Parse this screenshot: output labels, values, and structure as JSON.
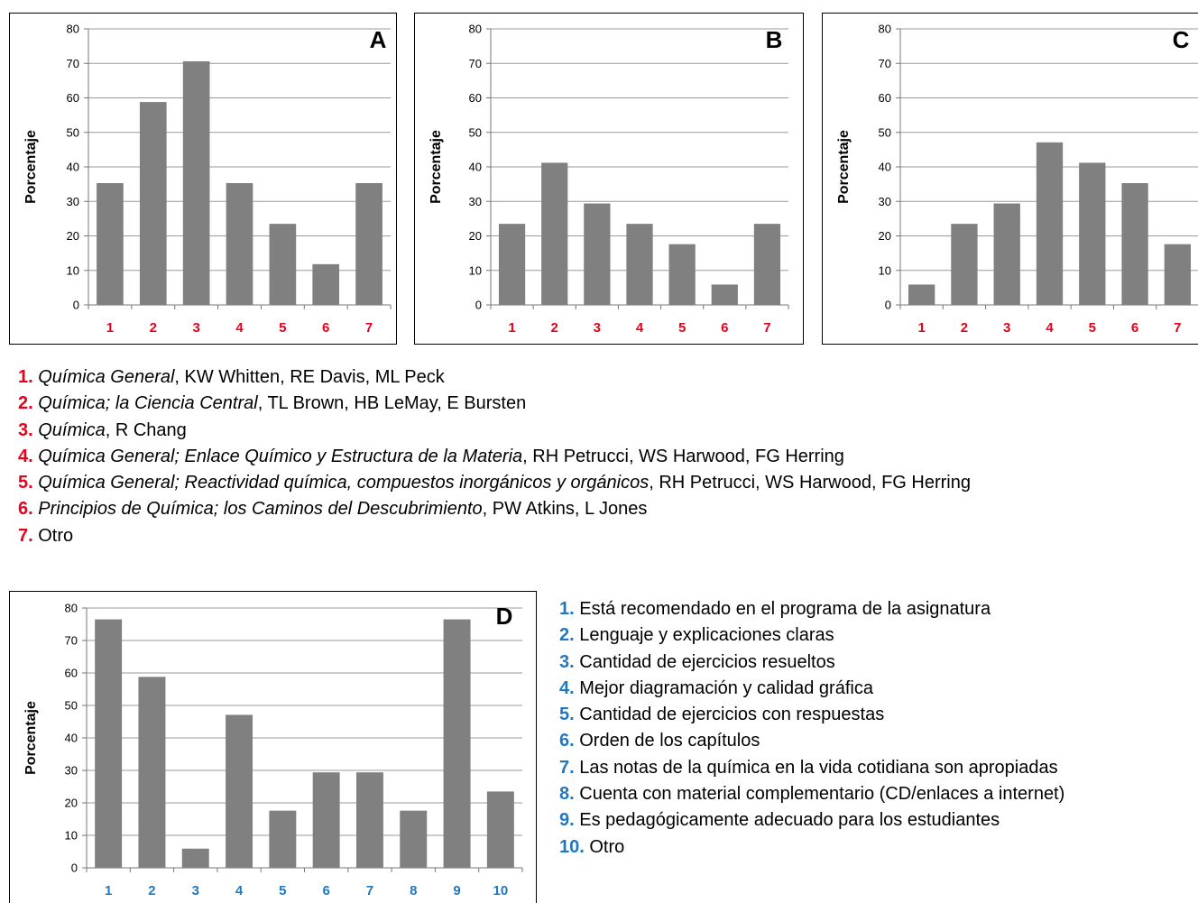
{
  "colors": {
    "bar": "#808080",
    "book_number": "#e8001c",
    "reason_number": "#1f78c2",
    "grid": "#9a9a9a"
  },
  "y_axis_label": "Porcentaje",
  "chart_data": [
    {
      "type": "bar",
      "panel": "A",
      "ylabel": "Porcentaje",
      "ylim": [
        0,
        80
      ],
      "yticks": [
        0,
        10,
        20,
        30,
        40,
        50,
        60,
        70,
        80
      ],
      "categories": [
        "1",
        "2",
        "3",
        "4",
        "5",
        "6",
        "7"
      ],
      "values": [
        35.3,
        58.8,
        70.6,
        35.3,
        23.5,
        11.8,
        35.3
      ],
      "grid": true
    },
    {
      "type": "bar",
      "panel": "B",
      "ylabel": "Porcentaje",
      "ylim": [
        0,
        80
      ],
      "yticks": [
        0,
        10,
        20,
        30,
        40,
        50,
        60,
        70,
        80
      ],
      "categories": [
        "1",
        "2",
        "3",
        "4",
        "5",
        "6",
        "7"
      ],
      "values": [
        23.5,
        41.2,
        29.4,
        23.5,
        17.6,
        5.9,
        23.5
      ],
      "grid": true
    },
    {
      "type": "bar",
      "panel": "C",
      "ylabel": "Porcentaje",
      "ylim": [
        0,
        80
      ],
      "yticks": [
        0,
        10,
        20,
        30,
        40,
        50,
        60,
        70,
        80
      ],
      "categories": [
        "1",
        "2",
        "3",
        "4",
        "5",
        "6",
        "7"
      ],
      "values": [
        5.9,
        23.5,
        29.4,
        47.1,
        41.2,
        35.3,
        17.6
      ],
      "grid": true
    },
    {
      "type": "bar",
      "panel": "D",
      "ylabel": "Porcentaje",
      "ylim": [
        0,
        80
      ],
      "yticks": [
        0,
        10,
        20,
        30,
        40,
        50,
        60,
        70,
        80
      ],
      "categories": [
        "1",
        "2",
        "3",
        "4",
        "5",
        "6",
        "7",
        "8",
        "9",
        "10"
      ],
      "values": [
        76.5,
        58.8,
        5.9,
        47.1,
        17.6,
        29.4,
        29.4,
        17.6,
        76.5,
        23.5
      ],
      "grid": true
    }
  ],
  "book_legend": [
    {
      "num": "1.",
      "title": "Química General",
      "rest": ", KW Whitten, RE Davis, ML Peck"
    },
    {
      "num": "2.",
      "title": "Química; la Ciencia Central",
      "rest": ", TL Brown, HB LeMay, E Bursten"
    },
    {
      "num": "3.",
      "title": "Química",
      "rest": ", R Chang"
    },
    {
      "num": "4.",
      "title": "Química General; Enlace Químico y Estructura de la Materia",
      "rest": ", RH Petrucci, WS Harwood, FG Herring"
    },
    {
      "num": "5.",
      "title": "Química General; Reactividad química, compuestos inorgánicos y orgánicos",
      "rest": ", RH Petrucci, WS Harwood, FG Herring"
    },
    {
      "num": "6.",
      "title": "Principios de Química; los Caminos del Descubrimiento",
      "rest": ", PW Atkins, L Jones"
    },
    {
      "num": "7.",
      "title": "",
      "rest": "Otro"
    }
  ],
  "reason_legend": [
    {
      "num": "1.",
      "text": "Está recomendado en el programa de la asignatura"
    },
    {
      "num": "2.",
      "text": "Lenguaje y explicaciones claras"
    },
    {
      "num": "3.",
      "text": "Cantidad de ejercicios resueltos"
    },
    {
      "num": "4.",
      "text": "Mejor diagramación y calidad gráfica"
    },
    {
      "num": "5.",
      "text": "Cantidad de ejercicios con respuestas"
    },
    {
      "num": "6.",
      "text": "Orden de los capítulos"
    },
    {
      "num": "7.",
      "text": "Las notas de la química en la vida cotidiana son apropiadas"
    },
    {
      "num": "8.",
      "text": "Cuenta con material complementario (CD/enlaces a internet)"
    },
    {
      "num": "9.",
      "text": "Es pedagógicamente adecuado para los estudiantes"
    },
    {
      "num": "10.",
      "text": "Otro"
    }
  ]
}
